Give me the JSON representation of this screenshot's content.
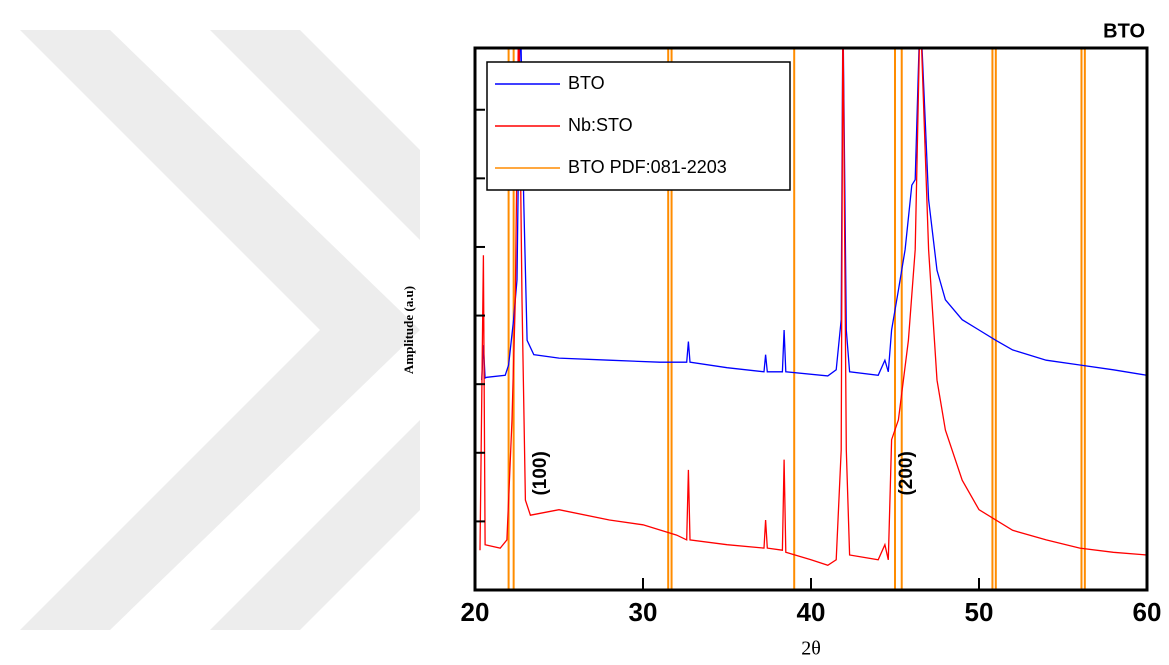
{
  "chart_data": {
    "type": "line",
    "title": "BTO",
    "x_label": "2θ",
    "y_label": "Amplitude (a.u)",
    "xlim": [
      20,
      60
    ],
    "xticks": [
      20,
      30,
      40,
      50,
      60
    ],
    "ylim": [
      0,
      7.9
    ],
    "yticks": [
      1,
      2,
      3,
      4,
      5,
      6,
      7
    ],
    "legend": "upper left",
    "series": [
      {
        "name": "BTO",
        "color": "#0000ff",
        "x": [
          20.4,
          20.5,
          20.6,
          20.7,
          21.8,
          22.0,
          22.3,
          22.5,
          22.7,
          22.9,
          23.1,
          23.5,
          25,
          28,
          31,
          32.6,
          32.7,
          32.8,
          35,
          37.2,
          37.3,
          37.4,
          38.3,
          38.4,
          38.5,
          41,
          41.5,
          41.8,
          41.9,
          42.1,
          42.3,
          44,
          44.4,
          44.6,
          44.8,
          45.2,
          45.6,
          46,
          46.2,
          46.5,
          46.8,
          47,
          47.5,
          48,
          49,
          50,
          51,
          52,
          54,
          56,
          58,
          60
        ],
        "values": [
          3.06,
          3.57,
          3.09,
          3.1,
          3.13,
          3.28,
          3.94,
          4.52,
          8.5,
          5.69,
          3.64,
          3.43,
          3.38,
          3.35,
          3.32,
          3.32,
          3.62,
          3.32,
          3.24,
          3.18,
          3.43,
          3.18,
          3.18,
          3.79,
          3.18,
          3.12,
          3.21,
          3.94,
          8.5,
          3.79,
          3.18,
          3.13,
          3.35,
          3.18,
          3.79,
          4.37,
          4.96,
          5.9,
          5.98,
          8.5,
          6.85,
          5.69,
          4.66,
          4.23,
          3.94,
          3.79,
          3.64,
          3.5,
          3.35,
          3.28,
          3.21,
          3.13
        ]
      },
      {
        "name": "Nb:STO",
        "color": "#ff0000",
        "x": [
          20.3,
          20.5,
          20.6,
          21.5,
          21.9,
          22.0,
          22.2,
          22.4,
          22.6,
          22.8,
          23.0,
          23.3,
          25,
          28,
          30,
          32,
          32.6,
          32.7,
          32.8,
          35,
          37.2,
          37.3,
          37.4,
          38.3,
          38.4,
          38.5,
          40,
          41,
          41.5,
          41.8,
          41.9,
          42.1,
          42.3,
          44,
          44.4,
          44.6,
          44.8,
          45.2,
          45.8,
          46.2,
          46.5,
          47,
          47.5,
          48,
          49,
          50,
          52,
          54,
          56,
          58,
          60
        ],
        "values": [
          0.58,
          4.88,
          0.66,
          0.61,
          0.73,
          1.31,
          2.48,
          4.23,
          8.5,
          4.23,
          1.31,
          1.09,
          1.17,
          1.02,
          0.95,
          0.8,
          0.73,
          1.75,
          0.73,
          0.66,
          0.61,
          1.02,
          0.61,
          0.58,
          1.9,
          0.55,
          0.44,
          0.36,
          0.44,
          2.04,
          8.5,
          2.04,
          0.51,
          0.44,
          0.66,
          0.44,
          2.19,
          2.48,
          3.64,
          4.96,
          8.5,
          4.96,
          3.06,
          2.33,
          1.6,
          1.17,
          0.87,
          0.73,
          0.61,
          0.55,
          0.51
        ]
      }
    ],
    "reference": {
      "name": "BTO PDF:081-2203",
      "color": "#ff8c00",
      "x": [
        22.0,
        22.3,
        31.5,
        31.7,
        39.0,
        45.0,
        45.4,
        50.8,
        51.0,
        56.1,
        56.3
      ]
    },
    "annotations": [
      {
        "text": "(100)",
        "x": 23.2,
        "y": 1.7
      },
      {
        "text": "(200)",
        "x": 45.0,
        "y": 1.7
      }
    ]
  }
}
